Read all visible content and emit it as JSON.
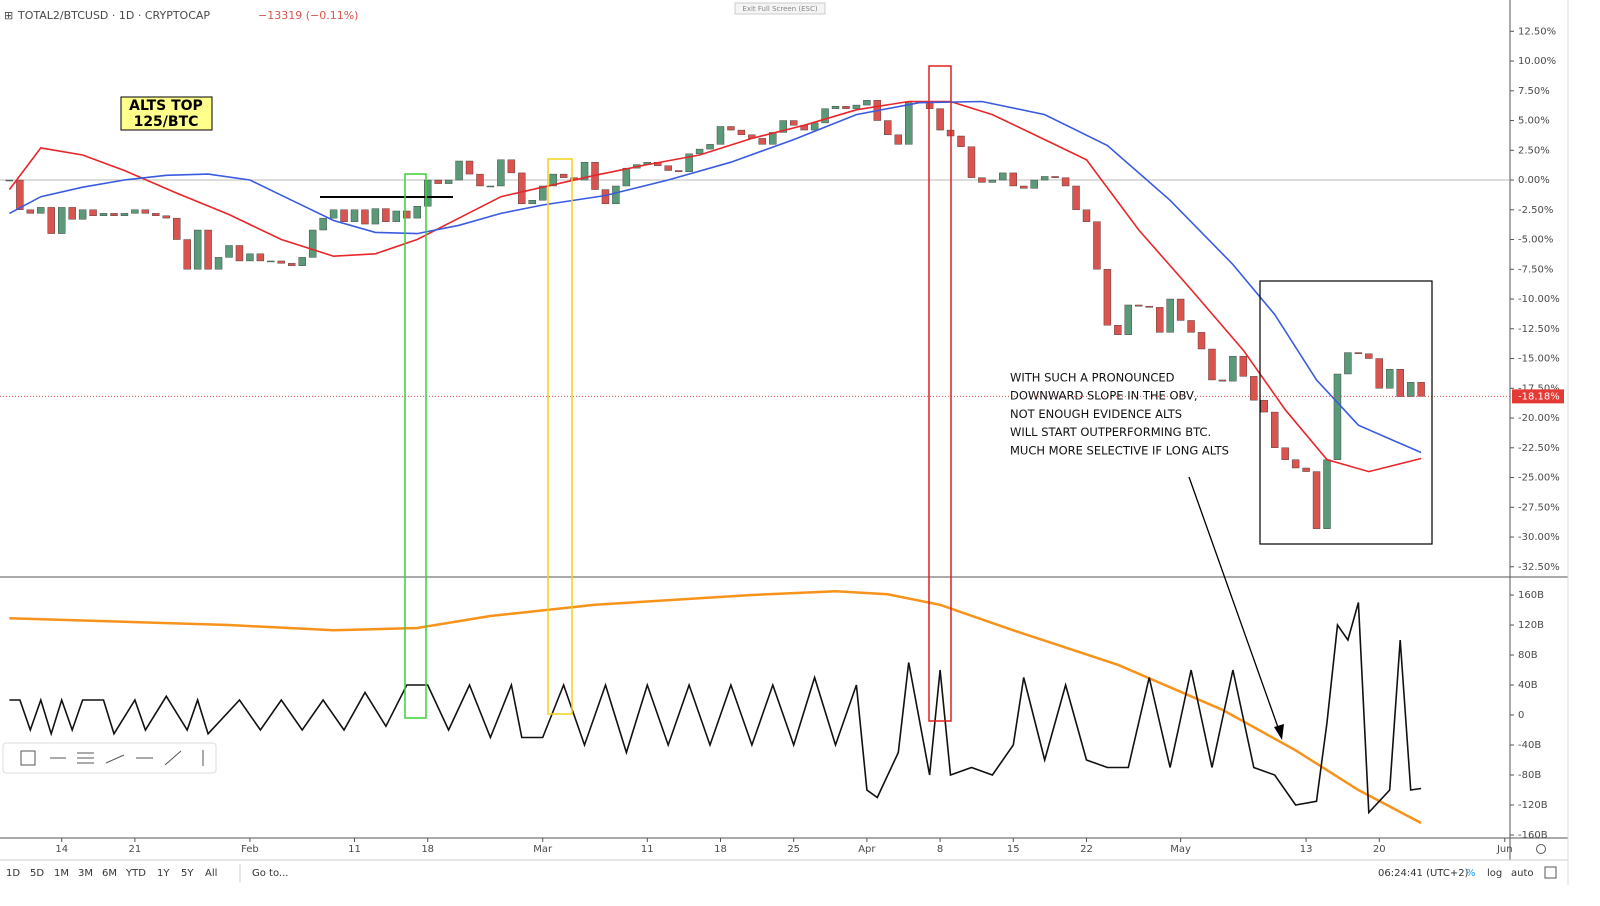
{
  "header": {
    "symbol": "TOTAL2/BTCUSD · 1D · CRYPTOCAP",
    "change": "−13319 (−0.11%)",
    "exit": "Exit Full Screen (ESC)"
  },
  "chart_data": [
    {
      "type": "candlestick",
      "x": [
        9,
        10,
        11,
        12,
        13,
        14,
        15,
        16,
        17,
        18,
        19,
        20,
        21,
        22,
        23,
        24,
        25,
        26,
        27,
        28,
        29,
        30,
        31,
        32,
        33,
        34,
        35,
        36,
        37,
        38,
        39,
        40,
        41,
        42,
        43,
        44,
        45,
        46,
        47,
        48,
        49,
        50,
        51,
        52,
        53,
        54,
        55,
        56,
        57,
        58,
        59,
        60,
        61,
        62,
        63,
        64,
        65,
        66,
        67,
        68,
        69,
        70,
        71,
        72,
        73,
        74,
        75,
        76,
        77,
        78,
        79,
        80,
        81,
        82,
        83,
        84,
        85,
        86,
        87,
        88,
        89,
        90,
        91,
        92,
        93,
        94,
        95,
        96,
        97,
        98,
        99,
        100,
        101,
        102,
        103,
        104,
        105,
        106,
        107,
        108,
        109,
        110,
        111,
        112,
        113,
        114,
        115,
        116,
        117,
        118,
        119,
        120,
        121,
        122,
        123,
        124,
        125,
        126,
        127,
        128,
        129,
        130,
        131,
        132,
        133,
        134,
        135,
        136,
        137,
        138,
        139,
        140,
        141,
        142,
        143,
        144
      ],
      "close": [
        0,
        -2.5,
        -2.8,
        -2.3,
        -4.5,
        -2.3,
        -3.3,
        -2.5,
        -3.0,
        -2.8,
        -3.0,
        -2.8,
        -2.5,
        -2.8,
        -3.0,
        -3.2,
        -5.0,
        -7.5,
        -4.2,
        -7.5,
        -6.5,
        -5.5,
        -6.8,
        -6.2,
        -6.8,
        -6.8,
        -7.0,
        -7.2,
        -6.5,
        -4.2,
        -3.2,
        -2.5,
        -3.5,
        -2.5,
        -3.7,
        -2.4,
        -3.5,
        -2.6,
        -3.2,
        -2.2,
        0,
        -0.3,
        0,
        1.6,
        0.5,
        -0.5,
        -0.5,
        1.7,
        0.6,
        -2.0,
        -1.7,
        -0.5,
        0.5,
        0.2,
        0,
        1.5,
        -0.8,
        -2.0,
        -0.5,
        1.0,
        1.3,
        1.5,
        1.2,
        0.8,
        0.7,
        2.2,
        2.6,
        3.0,
        4.5,
        4.2,
        3.8,
        3.5,
        3.0,
        4.0,
        5.0,
        4.6,
        4.2,
        4.8,
        6.0,
        6.2,
        6.0,
        6.3,
        6.7,
        5.0,
        3.8,
        3.0,
        6.5,
        6.6,
        6.0,
        4.2,
        3.7,
        2.8,
        0.2,
        -0.2,
        0.0,
        0.6,
        -0.5,
        -0.7,
        0.0,
        0.3,
        0.2,
        -0.5,
        -2.5,
        -3.5,
        -7.5,
        -12.2,
        -13.0,
        -10.5,
        -10.6,
        -10.7,
        -12.8,
        -10.0,
        -11.8,
        -12.8,
        -14.2,
        -16.8,
        -16.9,
        -14.8,
        -16.5,
        -18.5,
        -19.5,
        -22.5,
        -23.5,
        -24.2,
        -24.5,
        -29.3,
        -23.5,
        -16.3,
        -14.5,
        -14.6,
        -15.0,
        -17.5,
        -15.9,
        -18.2,
        -17.0,
        -18.18
      ],
      "up_color": "#5a9a78",
      "down_color": "#d9534f",
      "series": [
        {
          "color": "#e8262a",
          "x": [
            9,
            12,
            16,
            20,
            25,
            30,
            35,
            40,
            44,
            48,
            52,
            56,
            60,
            65,
            70,
            75,
            80,
            85,
            90,
            95,
            99,
            103,
            108,
            112,
            117,
            122,
            127,
            131,
            135,
            139,
            144
          ],
          "values": [
            -0.8,
            2.7,
            2.1,
            0.8,
            -1.1,
            -2.9,
            -5.0,
            -6.4,
            -6.2,
            -5.0,
            -3.2,
            -1.4,
            -0.6,
            0.4,
            1.3,
            2.1,
            3.5,
            4.6,
            5.9,
            6.6,
            6.6,
            5.5,
            3.4,
            1.7,
            -4.2,
            -9.2,
            -14.3,
            -19.3,
            -23.5,
            -24.5,
            -23.4
          ]
        },
        {
          "color": "#3a5be0",
          "x": [
            9,
            12,
            16,
            20,
            24,
            28,
            32,
            36,
            40,
            44,
            48,
            52,
            56,
            60,
            66,
            72,
            78,
            84,
            90,
            96,
            102,
            108,
            114,
            120,
            126,
            130,
            134,
            138,
            144
          ],
          "values": [
            -2.8,
            -1.4,
            -0.6,
            0,
            0.4,
            0.5,
            0,
            -1.7,
            -3.4,
            -4.4,
            -4.5,
            -3.8,
            -2.8,
            -2.1,
            -1.3,
            0,
            1.5,
            3.4,
            5.5,
            6.5,
            6.6,
            5.5,
            2.9,
            -1.7,
            -7.1,
            -11.3,
            -16.8,
            -20.6,
            -22.9
          ]
        }
      ],
      "last_price": -18.18,
      "last_price_label": "-18.18%",
      "xlim": [
        8.1,
        152.5
      ],
      "xticks": [
        14,
        21,
        {
          "value": 32,
          "label": "Feb"
        },
        {
          "value": 42,
          "label": "11"
        },
        {
          "value": 49,
          "label": "18"
        },
        {
          "value": 60,
          "label": "Mar"
        },
        {
          "value": 70,
          "label": "11"
        },
        {
          "value": 77,
          "label": "18"
        },
        {
          "value": 84,
          "label": "25"
        },
        {
          "value": 91,
          "label": "Apr"
        },
        {
          "value": 98,
          "label": "8"
        },
        {
          "value": 105,
          "label": "15"
        },
        {
          "value": 112,
          "label": "22"
        },
        {
          "value": 121,
          "label": "May"
        },
        {
          "value": 133,
          "label": "13"
        },
        {
          "value": 140,
          "label": "20"
        },
        {
          "value": 152,
          "label": "Jun"
        }
      ],
      "ylim": [
        -33.36,
        15.13
      ],
      "yticks": [
        {
          "value": 12.5,
          "label": "12.50%"
        },
        {
          "value": 10,
          "label": "10.00%"
        },
        {
          "value": 7.5,
          "label": "7.50%"
        },
        {
          "value": 5,
          "label": "5.00%"
        },
        {
          "value": 2.5,
          "label": "2.50%"
        },
        {
          "value": 0,
          "label": "0.00%"
        },
        {
          "value": -2.5,
          "label": "-2.50%"
        },
        {
          "value": -5,
          "label": "-5.00%"
        },
        {
          "value": -7.5,
          "label": "-7.50%"
        },
        {
          "value": -10,
          "label": "-10.00%"
        },
        {
          "value": -12.5,
          "label": "-12.50%"
        },
        {
          "value": -15,
          "label": "-15.00%"
        },
        {
          "value": -17.5,
          "label": "-17.50%"
        },
        {
          "value": -20,
          "label": "-20.00%"
        },
        {
          "value": -22.5,
          "label": "-22.50%"
        },
        {
          "value": -25,
          "label": "-25.00%"
        },
        {
          "value": -27.5,
          "label": "-27.50%"
        },
        {
          "value": -30,
          "label": "-30.00%"
        },
        {
          "value": -32.5,
          "label": "-32.50%"
        }
      ],
      "annotations": {
        "alts_top": [
          "ALTS TOP",
          "125/BTC"
        ],
        "note": [
          "WITH SUCH A PRONOUNCED",
          "DOWNWARD SLOPE IN THE OBV,",
          "NOT ENOUGH EVIDENCE ALTS",
          "WILL START OUTPERFORMING BTC.",
          "MUCH MORE SELECTIVE IF LONG ALTS"
        ]
      }
    },
    {
      "type": "line",
      "series": [
        {
          "color": "#f7931a",
          "x": [
            9,
            30,
            40,
            48,
            55,
            65,
            80,
            88,
            93,
            98,
            105,
            115,
            125,
            132,
            138,
            144
          ],
          "values": [
            129,
            120,
            113,
            116,
            132,
            147,
            160,
            165,
            161,
            147,
            113,
            67,
            7,
            -47,
            -100,
            -144
          ]
        },
        {
          "color": "#111111",
          "x": [
            9,
            10,
            11,
            12,
            13,
            14,
            15,
            16,
            18,
            19,
            21,
            22,
            24,
            26,
            27,
            28,
            31,
            33,
            35,
            37,
            39,
            41,
            43,
            45,
            47,
            49,
            51,
            53,
            55,
            57,
            58,
            60,
            62,
            64,
            66,
            68,
            70,
            72,
            74,
            76,
            78,
            80,
            82,
            84,
            86,
            88,
            90,
            91,
            92,
            94,
            95,
            97,
            98,
            99,
            101,
            103,
            105,
            106,
            108,
            110,
            112,
            114,
            116,
            118,
            120,
            122,
            124,
            126,
            128,
            130,
            132,
            134,
            135,
            136,
            137,
            138,
            139,
            141,
            142,
            143,
            144
          ],
          "values": [
            20,
            20,
            -20,
            20,
            -25,
            20,
            -20,
            20,
            20,
            -25,
            20,
            -20,
            25,
            -20,
            20,
            -25,
            20,
            -20,
            20,
            -20,
            20,
            -20,
            30,
            -15,
            40,
            40,
            -20,
            40,
            -30,
            40,
            -30,
            -30,
            40,
            -40,
            40,
            -50,
            40,
            -40,
            40,
            -40,
            40,
            -40,
            40,
            -40,
            50,
            -40,
            40,
            -100,
            -110,
            -50,
            70,
            -80,
            60,
            -80,
            -70,
            -80,
            -40,
            50,
            -60,
            40,
            -60,
            -70,
            -70,
            50,
            -70,
            60,
            -70,
            60,
            -70,
            -80,
            -120,
            -115,
            -10,
            120,
            100,
            150,
            -130,
            -100,
            100,
            -100,
            -98
          ]
        }
      ],
      "xlim": [
        8.1,
        152.5
      ],
      "ylim": [
        -164,
        182.7
      ],
      "yticks": [
        {
          "value": 160,
          "label": "160B"
        },
        {
          "value": 120,
          "label": "120B"
        },
        {
          "value": 80,
          "label": "80B"
        },
        {
          "value": 40,
          "label": "40B"
        },
        0,
        {
          "value": -40,
          "label": "-40B"
        },
        {
          "value": -80,
          "label": "-80B"
        },
        {
          "value": -120,
          "label": "-120B"
        },
        {
          "value": -160,
          "label": "-160B"
        }
      ]
    }
  ],
  "footer": {
    "ranges": [
      "1D",
      "5D",
      "1M",
      "3M",
      "6M",
      "YTD",
      "1Y",
      "5Y",
      "All"
    ],
    "goto": "Go to...",
    "time": "06:24:41 (UTC+2)",
    "percent": "%",
    "log": "log",
    "auto": "auto"
  }
}
